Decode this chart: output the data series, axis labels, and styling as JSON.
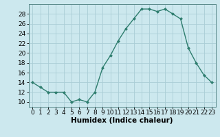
{
  "x": [
    0,
    1,
    2,
    3,
    4,
    5,
    6,
    7,
    8,
    9,
    10,
    11,
    12,
    13,
    14,
    15,
    16,
    17,
    18,
    19,
    20,
    21,
    22,
    23
  ],
  "y": [
    14,
    13,
    12,
    12,
    12,
    10,
    10.5,
    10,
    12,
    17,
    19.5,
    22.5,
    25,
    27,
    29,
    29,
    28.5,
    29,
    28,
    27,
    21,
    18,
    15.5,
    14
  ],
  "line_color": "#2e7d6e",
  "marker_color": "#2e7d6e",
  "bg_color": "#cce8ee",
  "grid_color": "#aacdd6",
  "xlabel": "Humidex (Indice chaleur)",
  "ylim": [
    9,
    30
  ],
  "xlim": [
    -0.5,
    23.5
  ],
  "yticks": [
    10,
    12,
    14,
    16,
    18,
    20,
    22,
    24,
    26,
    28
  ],
  "xticks": [
    0,
    1,
    2,
    3,
    4,
    5,
    6,
    7,
    8,
    9,
    10,
    11,
    12,
    13,
    14,
    15,
    16,
    17,
    18,
    19,
    20,
    21,
    22,
    23
  ],
  "xlabel_fontsize": 7.5,
  "tick_fontsize": 6.5
}
